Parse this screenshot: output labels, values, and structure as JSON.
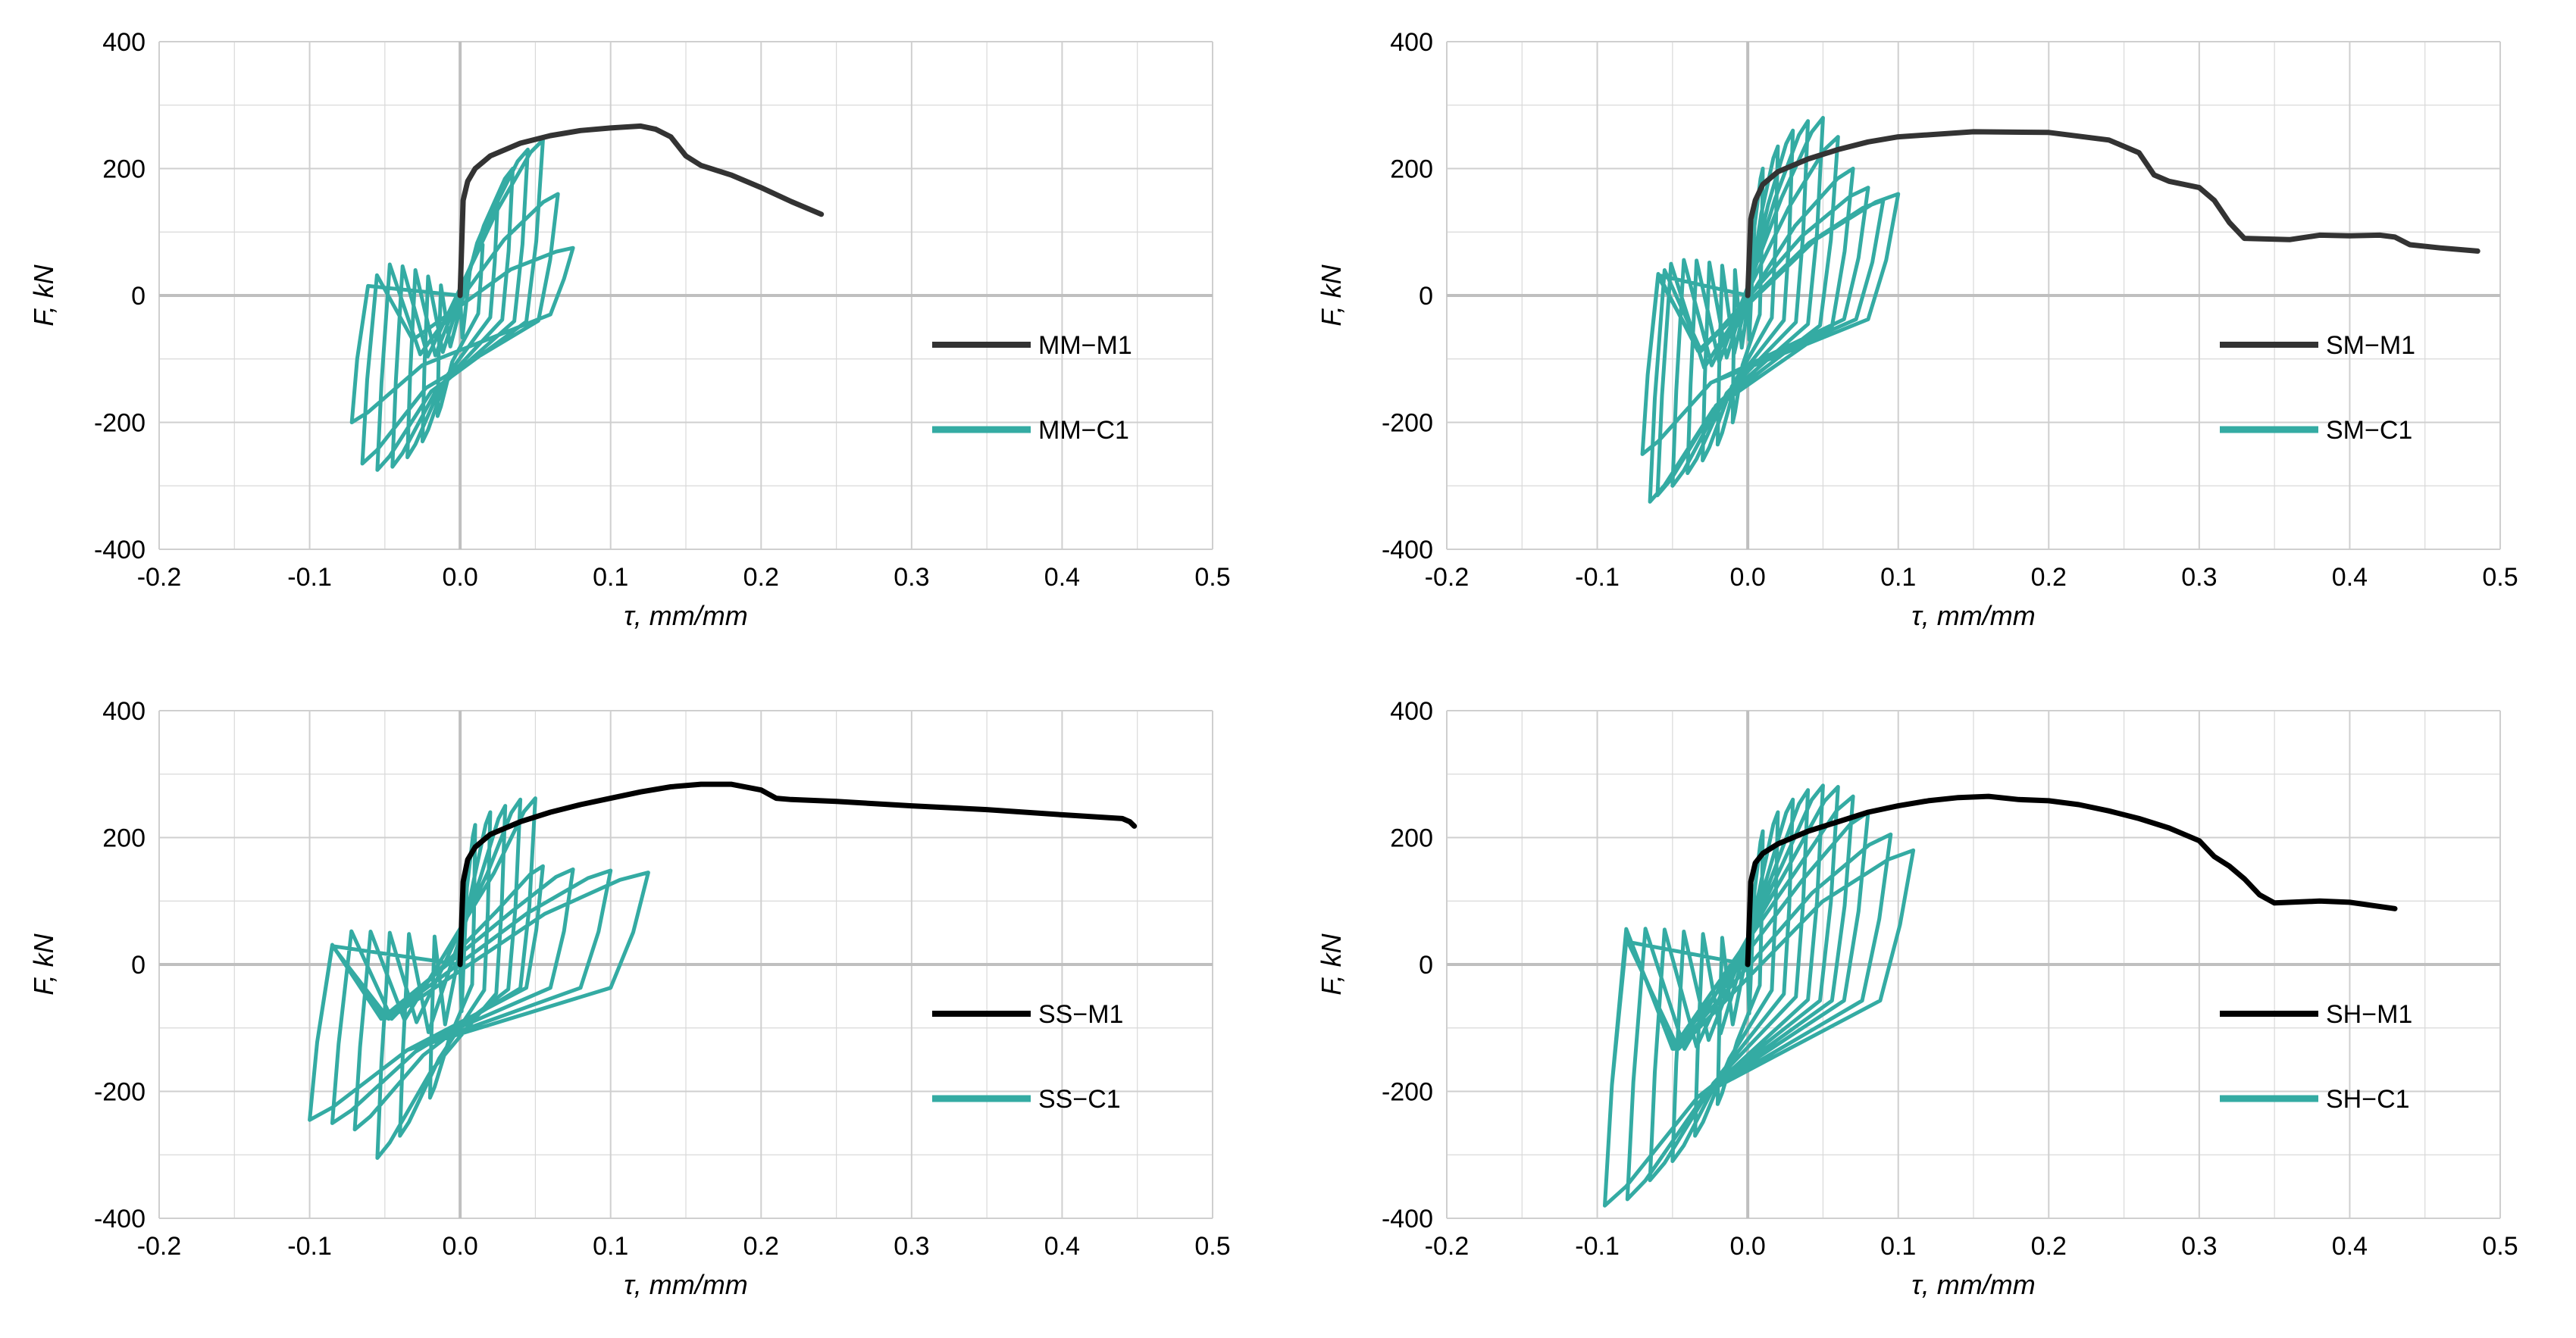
{
  "colors": {
    "monotonic": "#333333",
    "monotonic_black": "#000000",
    "cyclic": "#34aba3",
    "grid": "#d9d9d9",
    "zero_line": "#bfbfbf"
  },
  "chart_data": [
    {
      "type": "line",
      "xlabel": "τ, mm/mm",
      "ylabel": "F, kN",
      "xlim": [
        -0.2,
        0.5
      ],
      "ylim": [
        -400,
        400
      ],
      "xticks": [
        "-0.2",
        "-0.1",
        "0.0",
        "0.1",
        "0.2",
        "0.3",
        "0.4",
        "0.5"
      ],
      "yticks": [
        "400",
        "200",
        "0",
        "-200",
        "-400"
      ],
      "grid": true,
      "legend_position": "right-middle",
      "series": [
        {
          "name": "MM−M1",
          "kind": "monotonic",
          "color_key": "monotonic",
          "x": [
            0,
            0.002,
            0.005,
            0.01,
            0.02,
            0.04,
            0.06,
            0.08,
            0.1,
            0.12,
            0.13,
            0.14,
            0.15,
            0.16,
            0.18,
            0.2,
            0.22,
            0.24
          ],
          "y": [
            0,
            150,
            180,
            200,
            220,
            240,
            252,
            260,
            264,
            267,
            262,
            250,
            220,
            205,
            190,
            170,
            148,
            128
          ]
        },
        {
          "name": "MM−C1",
          "kind": "cyclic",
          "color_key": "cyclic",
          "amplitudes": [
            0.015,
            0.025,
            0.035,
            0.045,
            0.055,
            0.065,
            0.075
          ],
          "pos_peaks": [
            80,
            150,
            200,
            230,
            245,
            160,
            75
          ],
          "neg_amplitudes": [
            -0.015,
            -0.025,
            -0.035,
            -0.045,
            -0.055,
            -0.065,
            -0.072
          ],
          "neg_peaks": [
            -190,
            -230,
            -255,
            -270,
            -275,
            -265,
            -200
          ]
        }
      ]
    },
    {
      "type": "line",
      "xlabel": "τ, mm/mm",
      "ylabel": "F, kN",
      "xlim": [
        -0.2,
        0.5
      ],
      "ylim": [
        -400,
        400
      ],
      "xticks": [
        "-0.2",
        "-0.1",
        "0.0",
        "0.1",
        "0.2",
        "0.3",
        "0.4",
        "0.5"
      ],
      "yticks": [
        "400",
        "200",
        "0",
        "-200",
        "-400"
      ],
      "grid": true,
      "legend_position": "right-middle",
      "series": [
        {
          "name": "SM−M1",
          "kind": "monotonic",
          "color_key": "monotonic",
          "x": [
            0,
            0.002,
            0.005,
            0.01,
            0.02,
            0.04,
            0.06,
            0.08,
            0.1,
            0.15,
            0.2,
            0.24,
            0.26,
            0.27,
            0.28,
            0.3,
            0.31,
            0.32,
            0.33,
            0.36,
            0.38,
            0.4,
            0.42,
            0.43,
            0.44,
            0.46,
            0.485
          ],
          "y": [
            0,
            120,
            150,
            175,
            195,
            215,
            230,
            242,
            250,
            258,
            257,
            245,
            225,
            190,
            180,
            170,
            150,
            115,
            90,
            88,
            95,
            94,
            95,
            92,
            80,
            75,
            70
          ]
        },
        {
          "name": "SM−C1",
          "kind": "cyclic",
          "color_key": "cyclic",
          "amplitudes": [
            0.01,
            0.02,
            0.03,
            0.04,
            0.05,
            0.06,
            0.07,
            0.08,
            0.09,
            0.1
          ],
          "pos_peaks": [
            200,
            235,
            260,
            275,
            280,
            250,
            200,
            170,
            150,
            160
          ],
          "neg_amplitudes": [
            -0.01,
            -0.02,
            -0.03,
            -0.04,
            -0.05,
            -0.06,
            -0.065,
            -0.07
          ],
          "neg_peaks": [
            -200,
            -235,
            -260,
            -280,
            -300,
            -315,
            -325,
            -250
          ]
        }
      ]
    },
    {
      "type": "line",
      "xlabel": "τ, mm/mm",
      "ylabel": "F, kN",
      "xlim": [
        -0.2,
        0.5
      ],
      "ylim": [
        -400,
        400
      ],
      "xticks": [
        "-0.2",
        "-0.1",
        "0.0",
        "0.1",
        "0.2",
        "0.3",
        "0.4",
        "0.5"
      ],
      "yticks": [
        "400",
        "200",
        "0",
        "-200",
        "-400"
      ],
      "grid": true,
      "legend_position": "right-middle",
      "series": [
        {
          "name": "SS−M1",
          "kind": "monotonic",
          "color_key": "monotonic_black",
          "x": [
            0,
            0.002,
            0.005,
            0.01,
            0.02,
            0.04,
            0.06,
            0.08,
            0.1,
            0.12,
            0.14,
            0.16,
            0.18,
            0.2,
            0.21,
            0.22,
            0.25,
            0.3,
            0.35,
            0.4,
            0.44,
            0.445,
            0.448
          ],
          "y": [
            0,
            130,
            165,
            185,
            205,
            225,
            240,
            252,
            262,
            272,
            280,
            284,
            284,
            275,
            262,
            260,
            257,
            250,
            244,
            236,
            230,
            225,
            218
          ]
        },
        {
          "name": "SS−C1",
          "kind": "cyclic",
          "color_key": "cyclic",
          "amplitudes": [
            0.01,
            0.02,
            0.03,
            0.04,
            0.05,
            0.055,
            0.075,
            0.1,
            0.125
          ],
          "pos_peaks": [
            220,
            240,
            250,
            260,
            262,
            155,
            150,
            148,
            145
          ],
          "neg_amplitudes": [
            -0.02,
            -0.04,
            -0.055,
            -0.07,
            -0.085,
            -0.1
          ],
          "neg_peaks": [
            -210,
            -270,
            -305,
            -260,
            -250,
            -245
          ]
        }
      ]
    },
    {
      "type": "line",
      "xlabel": "τ, mm/mm",
      "ylabel": "F, kN",
      "xlim": [
        -0.2,
        0.5
      ],
      "ylim": [
        -400,
        400
      ],
      "xticks": [
        "-0.2",
        "-0.1",
        "0.0",
        "0.1",
        "0.2",
        "0.3",
        "0.4",
        "0.5"
      ],
      "yticks": [
        "400",
        "200",
        "0",
        "-200",
        "-400"
      ],
      "grid": true,
      "legend_position": "right-middle",
      "series": [
        {
          "name": "SH−M1",
          "kind": "monotonic",
          "color_key": "monotonic_black",
          "x": [
            0,
            0.002,
            0.005,
            0.01,
            0.02,
            0.04,
            0.06,
            0.08,
            0.1,
            0.12,
            0.14,
            0.16,
            0.18,
            0.2,
            0.22,
            0.24,
            0.26,
            0.28,
            0.3,
            0.31,
            0.32,
            0.33,
            0.34,
            0.35,
            0.38,
            0.4,
            0.43
          ],
          "y": [
            0,
            130,
            160,
            175,
            190,
            210,
            225,
            240,
            250,
            258,
            263,
            265,
            260,
            258,
            252,
            242,
            230,
            215,
            195,
            170,
            155,
            135,
            110,
            97,
            100,
            98,
            88
          ]
        },
        {
          "name": "SH−C1",
          "kind": "cyclic",
          "color_key": "cyclic",
          "amplitudes": [
            0.01,
            0.02,
            0.03,
            0.04,
            0.05,
            0.06,
            0.07,
            0.08,
            0.095,
            0.11
          ],
          "pos_peaks": [
            210,
            240,
            260,
            275,
            282,
            280,
            265,
            240,
            205,
            180
          ],
          "neg_amplitudes": [
            -0.02,
            -0.035,
            -0.05,
            -0.065,
            -0.08,
            -0.095
          ],
          "neg_peaks": [
            -220,
            -270,
            -310,
            -340,
            -370,
            -380
          ]
        }
      ]
    }
  ]
}
